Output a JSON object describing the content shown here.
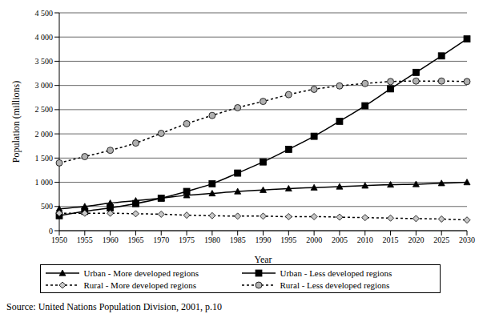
{
  "chart_data": {
    "type": "line",
    "x_label": "Year",
    "y_label": "Population (millions)",
    "source": "Source: United Nations Population Division, 2001, p.10",
    "categories": [
      "1950",
      "1955",
      "1960",
      "1965",
      "1970",
      "1975",
      "1980",
      "1985",
      "1990",
      "1995",
      "2000",
      "2005",
      "2010",
      "2015",
      "2020",
      "2025",
      "2030"
    ],
    "ylim": [
      0,
      4500
    ],
    "yticks": [
      0,
      500,
      {
        "value": 1000,
        "label": "1 000"
      },
      {
        "value": 1500,
        "label": "1 500"
      },
      {
        "value": 2000,
        "label": "2 000"
      },
      {
        "value": 2500,
        "label": "2 500"
      },
      {
        "value": 3000,
        "label": "3 000"
      },
      {
        "value": 3500,
        "label": "3 500"
      },
      {
        "value": 4000,
        "label": "4 000"
      },
      {
        "value": 4500,
        "label": "4 500"
      }
    ],
    "grid": true,
    "legend": "bottom",
    "series": [
      {
        "name": "Urban - More developed regions",
        "color": "#000000",
        "marker": "triangle",
        "line_style": "solid",
        "values": [
          450,
          500,
          570,
          620,
          670,
          730,
          770,
          810,
          840,
          870,
          890,
          910,
          930,
          950,
          960,
          980,
          1000
        ]
      },
      {
        "name": "Urban - Less developed regions",
        "color": "#000000",
        "marker": "square",
        "line_style": "solid",
        "values": [
          310,
          400,
          470,
          560,
          670,
          810,
          970,
          1190,
          1420,
          1680,
          1950,
          2260,
          2580,
          2930,
          3270,
          3610,
          3960
        ]
      },
      {
        "name": "Rural - More developed regions",
        "color": "#c8c8c8",
        "marker": "diamond",
        "line_style": "dotted",
        "values": [
          360,
          360,
          360,
          350,
          340,
          320,
          310,
          300,
          300,
          290,
          290,
          280,
          270,
          260,
          250,
          240,
          220
        ]
      },
      {
        "name": "Rural - Less developed regions",
        "color": "#b0b0b0",
        "marker": "circle",
        "line_style": "dotted",
        "values": [
          1400,
          1530,
          1660,
          1810,
          2010,
          2210,
          2380,
          2540,
          2670,
          2810,
          2920,
          2990,
          3040,
          3080,
          3090,
          3090,
          3080
        ]
      }
    ]
  }
}
